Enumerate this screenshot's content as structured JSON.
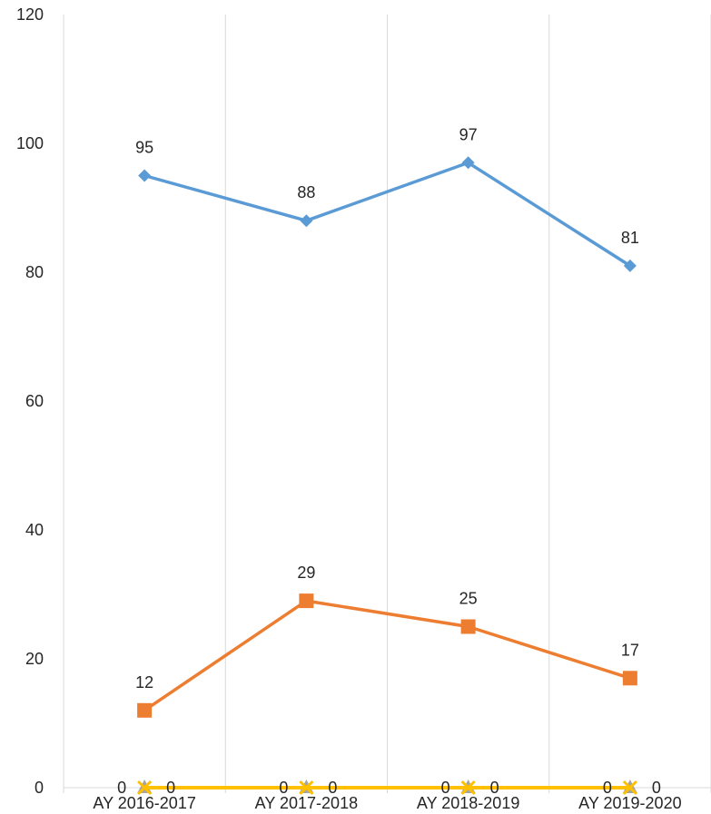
{
  "chart_data": {
    "type": "line",
    "categories": [
      "AY 2016-2017",
      "AY 2017-2018",
      "AY 2018-2019",
      "AY 2019-2020"
    ],
    "ylim": [
      0,
      120
    ],
    "yticks": [
      0,
      20,
      40,
      60,
      80,
      100,
      120
    ],
    "grid": "vertical",
    "legend": "none",
    "title": "",
    "xlabel": "",
    "ylabel": "",
    "series": [
      {
        "values": [
          95,
          88,
          97,
          81
        ],
        "color": "#5b9bd5",
        "marker": "diamond"
      },
      {
        "values": [
          12,
          29,
          25,
          17
        ],
        "color": "#ed7d31",
        "marker": "square"
      },
      {
        "values": [
          0,
          0,
          0,
          0
        ],
        "color": "#a5a5a5",
        "marker": "triangle"
      },
      {
        "values": [
          0,
          0,
          0,
          0
        ],
        "color": "#ffc000",
        "marker": "x"
      }
    ]
  }
}
